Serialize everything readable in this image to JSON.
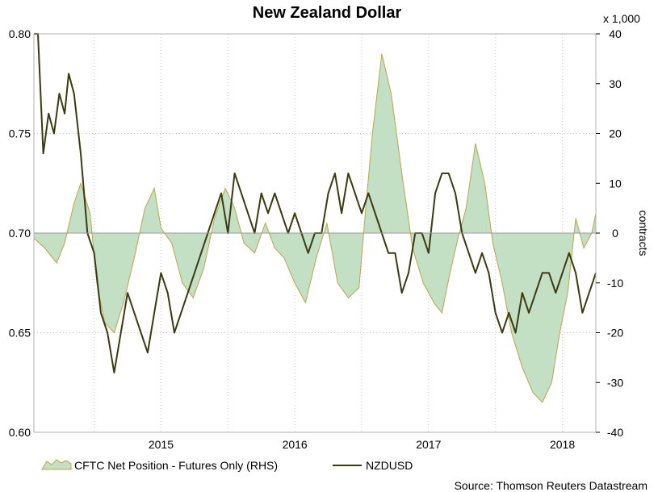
{
  "chart_data": {
    "type": "line",
    "title": "New Zealand Dollar",
    "xlabel": "",
    "ylabel_left": "",
    "ylabel_right": "contracts",
    "right_axis_unit": "x 1,000",
    "x_tick_labels": [
      "2015",
      "2016",
      "2017",
      "2018"
    ],
    "x_range": [
      2014.55,
      2018.75
    ],
    "ylim_left": [
      0.6,
      0.8
    ],
    "ylim_right": [
      -40,
      40
    ],
    "left_ticks": [
      "0.80",
      "0.75",
      "0.70",
      "0.65",
      "0.60"
    ],
    "right_ticks": [
      "40",
      "30",
      "20",
      "10",
      "0",
      "-10",
      "-20",
      "-30",
      "-40"
    ],
    "grid": true,
    "legend_position": "bottom-left",
    "source": "Source: Thomson Reuters Datastream",
    "series": [
      {
        "name": "CFTC Net Position - Futures Only (RHS)",
        "axis": "right",
        "kind": "area",
        "fill": "#c4e0c4",
        "stroke": "#b8a64a",
        "x": [
          2014.55,
          2014.63,
          2014.72,
          2014.78,
          2014.85,
          2014.9,
          2014.97,
          2015.02,
          2015.08,
          2015.15,
          2015.22,
          2015.3,
          2015.38,
          2015.45,
          2015.5,
          2015.58,
          2015.66,
          2015.74,
          2015.82,
          2015.9,
          2015.98,
          2016.05,
          2016.12,
          2016.2,
          2016.28,
          2016.35,
          2016.42,
          2016.5,
          2016.58,
          2016.66,
          2016.74,
          2016.82,
          2016.9,
          2016.98,
          2017.03,
          2017.08,
          2017.15,
          2017.22,
          2017.3,
          2017.38,
          2017.46,
          2017.54,
          2017.6,
          2017.66,
          2017.72,
          2017.78,
          2017.85,
          2017.92,
          2017.98,
          2018.05,
          2018.12,
          2018.2,
          2018.28,
          2018.35,
          2018.42,
          2018.48,
          2018.54,
          2018.6,
          2018.66,
          2018.72,
          2018.75
        ],
        "values": [
          -1,
          -3,
          -6,
          -2,
          6,
          10,
          4,
          -10,
          -18,
          -20,
          -14,
          -5,
          5,
          9,
          1,
          -2,
          -10,
          -13,
          -7,
          3,
          9,
          5,
          -2,
          -4,
          2,
          -3,
          -5,
          -10,
          -14,
          -5,
          2,
          -10,
          -13,
          -11,
          5,
          20,
          36,
          28,
          12,
          -3,
          -10,
          -14,
          -16,
          -8,
          -1,
          5,
          18,
          10,
          -2,
          -10,
          -20,
          -27,
          -32,
          -34,
          -30,
          -20,
          -12,
          3,
          -3,
          0,
          4
        ],
        "values_are_estimates": true
      },
      {
        "name": "NZDUSD",
        "axis": "left",
        "kind": "line",
        "stroke": "#3a3a10",
        "x": [
          2014.55,
          2014.58,
          2014.62,
          2014.66,
          2014.7,
          2014.74,
          2014.78,
          2014.81,
          2014.85,
          2014.9,
          2014.95,
          2015.0,
          2015.05,
          2015.1,
          2015.15,
          2015.2,
          2015.25,
          2015.3,
          2015.35,
          2015.4,
          2015.45,
          2015.5,
          2015.55,
          2015.6,
          2015.65,
          2015.7,
          2015.75,
          2015.8,
          2015.85,
          2015.9,
          2015.95,
          2016.0,
          2016.05,
          2016.1,
          2016.15,
          2016.2,
          2016.25,
          2016.3,
          2016.35,
          2016.4,
          2016.45,
          2016.5,
          2016.55,
          2016.6,
          2016.65,
          2016.7,
          2016.75,
          2016.8,
          2016.85,
          2016.9,
          2016.95,
          2017.0,
          2017.05,
          2017.1,
          2017.15,
          2017.2,
          2017.25,
          2017.3,
          2017.35,
          2017.4,
          2017.45,
          2017.5,
          2017.55,
          2017.6,
          2017.65,
          2017.7,
          2017.75,
          2017.8,
          2017.85,
          2017.9,
          2017.95,
          2018.0,
          2018.05,
          2018.1,
          2018.15,
          2018.2,
          2018.25,
          2018.3,
          2018.35,
          2018.4,
          2018.45,
          2018.5,
          2018.55,
          2018.6,
          2018.65,
          2018.7,
          2018.75
        ],
        "values": [
          0.81,
          0.8,
          0.74,
          0.76,
          0.75,
          0.77,
          0.76,
          0.78,
          0.77,
          0.74,
          0.7,
          0.69,
          0.66,
          0.65,
          0.63,
          0.65,
          0.67,
          0.66,
          0.65,
          0.64,
          0.66,
          0.68,
          0.67,
          0.65,
          0.66,
          0.67,
          0.68,
          0.69,
          0.7,
          0.71,
          0.72,
          0.7,
          0.73,
          0.72,
          0.71,
          0.7,
          0.72,
          0.71,
          0.72,
          0.71,
          0.7,
          0.71,
          0.7,
          0.69,
          0.7,
          0.7,
          0.72,
          0.73,
          0.71,
          0.73,
          0.72,
          0.71,
          0.72,
          0.71,
          0.7,
          0.69,
          0.69,
          0.67,
          0.68,
          0.7,
          0.7,
          0.69,
          0.72,
          0.73,
          0.73,
          0.72,
          0.7,
          0.69,
          0.68,
          0.69,
          0.68,
          0.66,
          0.65,
          0.66,
          0.65,
          0.67,
          0.66,
          0.67,
          0.68,
          0.68,
          0.67,
          0.68,
          0.69,
          0.68,
          0.66,
          0.67,
          0.68
        ],
        "values_are_estimates": true
      }
    ]
  }
}
